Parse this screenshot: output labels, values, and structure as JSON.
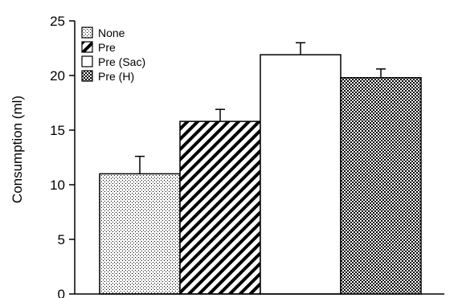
{
  "chart_data": {
    "type": "bar",
    "ylabel": "Consumption (ml)",
    "ylim": [
      0,
      25
    ],
    "yticks": [
      0,
      5,
      10,
      15,
      20,
      25
    ],
    "legend_position": "top-left",
    "series": [
      {
        "name": "None",
        "value": 11.0,
        "error": 1.6,
        "pattern": "dots"
      },
      {
        "name": "Pre",
        "value": 15.8,
        "error": 1.1,
        "pattern": "diagonal"
      },
      {
        "name": "Pre (Sac)",
        "value": 21.9,
        "error": 1.1,
        "pattern": "white"
      },
      {
        "name": "Pre (H)",
        "value": 19.8,
        "error": 0.8,
        "pattern": "checker"
      }
    ]
  }
}
